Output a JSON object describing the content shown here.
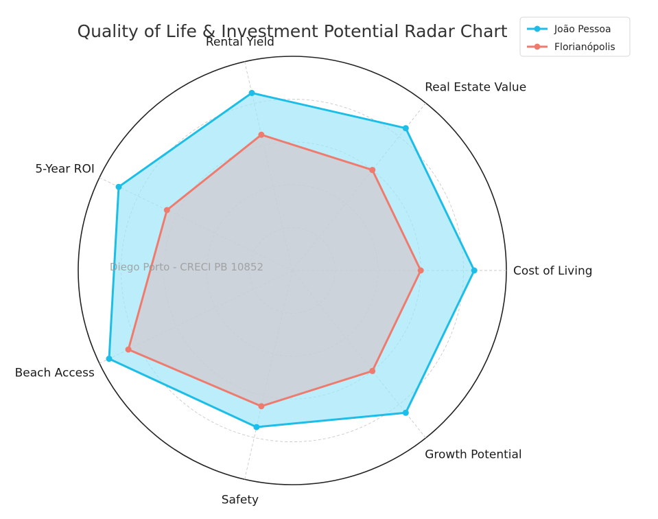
{
  "chart_data": {
    "type": "radar",
    "title": "Quality of Life & Investment Potential Radar Chart",
    "axes": [
      "Cost of Living",
      "Real Estate Value",
      "Rental Yield",
      "5-Year ROI",
      "Beach Access",
      "Safety",
      "Growth Potential"
    ],
    "rlim": [
      0,
      10
    ],
    "grid": true,
    "legend_position": "top-right",
    "series": [
      {
        "name": "João Pessoa",
        "color": "#1cbde6",
        "fill": "#9ee5f8",
        "values": [
          8.5,
          8.5,
          8.5,
          9.0,
          9.5,
          7.5,
          8.5
        ]
      },
      {
        "name": "Florianópolis",
        "color": "#ee7b6d",
        "fill": "#d3c8cd",
        "values": [
          6.0,
          6.0,
          6.5,
          6.5,
          8.5,
          6.5,
          6.0
        ]
      }
    ],
    "annotation": "Diego Porto - CRECI PB 10852"
  }
}
